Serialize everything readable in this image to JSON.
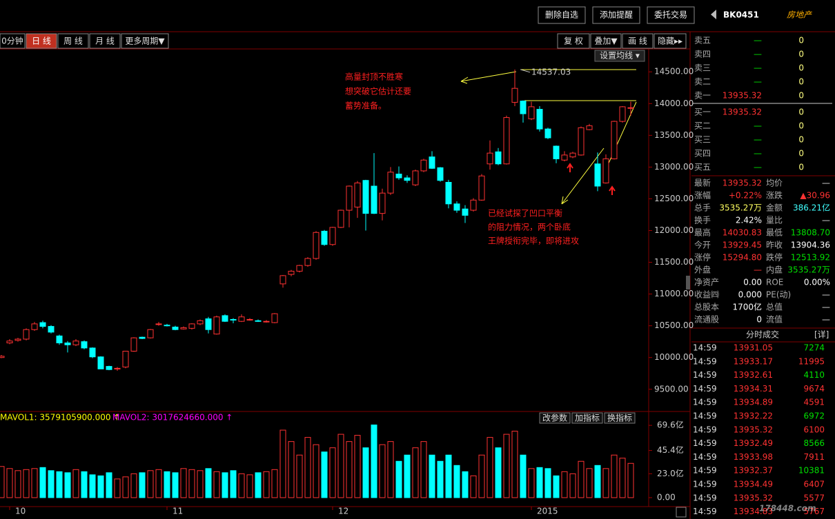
{
  "toolbar": {
    "buttons": [
      "删除自选",
      "添加提醒",
      "委托交易"
    ],
    "code": "BK0451",
    "name": "房地产"
  },
  "period_tabs": {
    "items": [
      "0分钟",
      "日 线",
      "周 线",
      "月 线",
      "更多周期▼"
    ],
    "active": 1
  },
  "chart_tools": {
    "items": [
      "复 权",
      "叠加▼",
      "画 线",
      "隐藏▸▸"
    ],
    "ma_setting": "设置均线 ▾"
  },
  "chart_data": [
    {
      "type": "candlestick",
      "up_color": "#ff3232",
      "down_color": "#00ffff",
      "categories": [
        null,
        "10",
        null,
        null,
        null,
        null,
        null,
        null,
        null,
        null,
        null,
        null,
        null,
        null,
        null,
        null,
        null,
        null,
        null,
        null,
        "11",
        null,
        null,
        null,
        null,
        null,
        null,
        null,
        null,
        null,
        null,
        null,
        null,
        null,
        null,
        null,
        null,
        null,
        null,
        null,
        "12",
        null,
        null,
        null,
        null,
        null,
        null,
        null,
        null,
        null,
        null,
        null,
        null,
        null,
        null,
        null,
        null,
        null,
        null,
        null,
        null,
        null,
        null,
        null,
        "2015",
        null,
        null,
        null,
        null,
        null,
        null,
        null,
        null,
        null,
        null,
        null,
        null
      ],
      "ohlc": [
        [
          10000,
          10040,
          9990,
          10020
        ],
        [
          10230,
          10290,
          10210,
          10260
        ],
        [
          10270,
          10310,
          10250,
          10290
        ],
        [
          10290,
          10460,
          10270,
          10440
        ],
        [
          10440,
          10560,
          10420,
          10530
        ],
        [
          10550,
          10580,
          10460,
          10490
        ],
        [
          10490,
          10510,
          10380,
          10400
        ],
        [
          10340,
          10360,
          10200,
          10230
        ],
        [
          10230,
          10260,
          10080,
          10200
        ],
        [
          10200,
          10290,
          10180,
          10260
        ],
        [
          10250,
          10270,
          10130,
          10150
        ],
        [
          10150,
          10160,
          9990,
          10010
        ],
        [
          10010,
          10020,
          9820,
          9820
        ],
        [
          9860,
          9870,
          9800,
          9810
        ],
        [
          9820,
          9850,
          9790,
          9830
        ],
        [
          9850,
          10100,
          9830,
          10100
        ],
        [
          10100,
          10320,
          10090,
          10310
        ],
        [
          10320,
          10330,
          10290,
          10300
        ],
        [
          10310,
          10450,
          10300,
          10440
        ],
        [
          10520,
          10560,
          10500,
          10530
        ],
        [
          10510,
          10530,
          10490,
          10500
        ],
        [
          10480,
          10500,
          10430,
          10440
        ],
        [
          10450,
          10490,
          10440,
          10470
        ],
        [
          10460,
          10540,
          10440,
          10530
        ],
        [
          10530,
          10600,
          10510,
          10580
        ],
        [
          10610,
          10640,
          10380,
          10440
        ],
        [
          10370,
          10660,
          10360,
          10640
        ],
        [
          10660,
          10680,
          10560,
          10570
        ],
        [
          10600,
          10620,
          10540,
          10590
        ],
        [
          10570,
          10680,
          10560,
          10640
        ],
        [
          10590,
          10620,
          10580,
          10600
        ],
        [
          10580,
          10600,
          10560,
          10570
        ],
        [
          10560,
          10590,
          10550,
          10570
        ],
        [
          10550,
          10700,
          10540,
          10690
        ],
        [
          11160,
          11300,
          11100,
          11290
        ],
        [
          11310,
          11380,
          11280,
          11360
        ],
        [
          11360,
          11460,
          11340,
          11450
        ],
        [
          11450,
          11580,
          11430,
          11560
        ],
        [
          11560,
          11990,
          11540,
          11970
        ],
        [
          11990,
          12010,
          11760,
          11780
        ],
        [
          11780,
          12060,
          11760,
          12050
        ],
        [
          12050,
          12330,
          12040,
          12320
        ],
        [
          12320,
          12710,
          12050,
          12700
        ],
        [
          12370,
          12780,
          12200,
          12750
        ],
        [
          12790,
          12800,
          12000,
          12270
        ],
        [
          12700,
          13220,
          12260,
          12270
        ],
        [
          12270,
          12660,
          12160,
          12590
        ],
        [
          12590,
          13000,
          12560,
          12920
        ],
        [
          12890,
          13010,
          12800,
          12830
        ],
        [
          12830,
          12870,
          12750,
          12790
        ],
        [
          12720,
          12960,
          12700,
          12940
        ],
        [
          12940,
          13130,
          12920,
          13110
        ],
        [
          13160,
          13250,
          12970,
          12980
        ],
        [
          12990,
          13000,
          12770,
          12790
        ],
        [
          12760,
          12800,
          12350,
          12420
        ],
        [
          12420,
          12460,
          12280,
          12320
        ],
        [
          12340,
          12400,
          12120,
          12240
        ],
        [
          12320,
          12510,
          12300,
          12480
        ],
        [
          12480,
          12890,
          12470,
          12860
        ],
        [
          13050,
          13420,
          12960,
          13220
        ],
        [
          13240,
          13300,
          13030,
          13050
        ],
        [
          13050,
          13810,
          13040,
          13780
        ],
        [
          14020,
          14537.03,
          13960,
          14240
        ],
        [
          14040,
          14050,
          13700,
          13840
        ],
        [
          13760,
          14030,
          13740,
          13950
        ],
        [
          13910,
          13960,
          13560,
          13600
        ],
        [
          13600,
          13620,
          13440,
          13460
        ],
        [
          13330,
          13340,
          13060,
          13130
        ],
        [
          13110,
          13250,
          13090,
          13190
        ],
        [
          13160,
          13240,
          13140,
          13220
        ],
        [
          13190,
          13640,
          13180,
          13620
        ],
        [
          13590,
          13680,
          13580,
          13650
        ],
        [
          13050,
          13230,
          12620,
          12700
        ],
        [
          12750,
          13200,
          12740,
          13130
        ],
        [
          13130,
          13730,
          13120,
          13720
        ],
        [
          13720,
          13960,
          13700,
          13950
        ],
        [
          13929.45,
          14030.83,
          13808.7,
          13935.32
        ]
      ],
      "ylim": [
        9150,
        14850
      ],
      "yticks": [
        {
          "value": 9500,
          "label": "9500.00"
        },
        {
          "value": 10000,
          "label": "10000.00"
        },
        {
          "value": 10500,
          "label": "10500.00"
        },
        {
          "value": 11000,
          "label": "11000.00"
        },
        {
          "value": 11500,
          "label": "11500.00"
        },
        {
          "value": 12000,
          "label": "12000.00"
        },
        {
          "value": 12500,
          "label": "12500.00"
        },
        {
          "value": 13000,
          "label": "13000.00"
        },
        {
          "value": 13500,
          "label": "13500.00"
        },
        {
          "value": 14000,
          "label": "14000.00"
        },
        {
          "value": 14500,
          "label": "14500.00"
        }
      ],
      "peak_label": 14537.03,
      "annotations": [
        "高量封顶不胜寒",
        "想突破它估计还要",
        "蓄势准备。",
        "已经试探了凹口平衡",
        "的阻力情况，两个卧底",
        "王牌授衔完毕，即将进攻"
      ]
    },
    {
      "type": "bar",
      "legend": [
        "MAVOL1: 3579105900.000 ↑",
        "MAVOL2: 3017624660.000 ↑"
      ],
      "legend_colors": [
        "#ffff00",
        "#ff00ff"
      ],
      "buttons": [
        "改参数",
        "加指标",
        "换指标"
      ],
      "values": [
        30,
        28,
        26,
        27,
        28,
        29,
        26,
        25,
        24,
        27,
        25,
        22,
        21,
        24,
        18,
        20,
        23,
        24,
        26,
        27,
        25,
        24,
        28,
        27,
        26,
        28,
        25,
        24,
        26,
        23,
        22,
        24,
        25,
        27,
        65,
        54,
        41,
        58,
        51,
        44,
        48,
        61,
        54,
        60,
        48,
        70,
        51,
        54,
        35,
        41,
        48,
        54,
        41,
        35,
        41,
        31,
        25,
        21,
        41,
        58,
        48,
        61,
        64,
        41,
        28,
        29,
        28,
        21,
        25,
        23,
        35,
        28,
        31,
        28,
        41,
        38,
        33
      ],
      "ylim": [
        0,
        73
      ],
      "yticks": [
        {
          "value": 0,
          "label": "0.00"
        },
        {
          "value": 23.0,
          "label": "23.0亿"
        },
        {
          "value": 45.4,
          "label": "45.4亿"
        },
        {
          "value": 69.6,
          "label": "69.6亿"
        }
      ]
    }
  ],
  "order_book": {
    "asks": [
      [
        "卖五",
        "—",
        0
      ],
      [
        "卖四",
        "—",
        0
      ],
      [
        "卖三",
        "—",
        0
      ],
      [
        "卖二",
        "—",
        0
      ],
      [
        "卖一",
        13935.32,
        0
      ]
    ],
    "bids": [
      [
        "买一",
        13935.32,
        0
      ],
      [
        "买二",
        "—",
        0
      ],
      [
        "买三",
        "—",
        0
      ],
      [
        "买四",
        "—",
        0
      ],
      [
        "买五",
        "—",
        0
      ]
    ]
  },
  "quote": [
    {
      "l1": "最新",
      "v1": "13935.32",
      "c1": "#ff3232",
      "l2": "均价",
      "v2": "—",
      "c2": "#dddddd"
    },
    {
      "l1": "涨幅",
      "v1": "+0.22%",
      "c1": "#ff3232",
      "l2": "涨跌",
      "v2": "▲30.96",
      "c2": "#ff3232"
    },
    {
      "l1": "总手",
      "v1": "3535.27万",
      "c1": "#ffff60",
      "l2": "金额",
      "v2": "386.21亿",
      "c2": "#40ffff"
    },
    {
      "l1": "换手",
      "v1": "2.42%",
      "c1": "#ffffff",
      "l2": "量比",
      "v2": "—",
      "c2": "#dddddd"
    },
    {
      "l1": "最高",
      "v1": "14030.83",
      "c1": "#ff3232",
      "l2": "最低",
      "v2": "13808.70",
      "c2": "#00e000"
    },
    {
      "l1": "今开",
      "v1": "13929.45",
      "c1": "#ff3232",
      "l2": "昨收",
      "v2": "13904.36",
      "c2": "#ffffff"
    },
    {
      "l1": "涨停",
      "v1": "15294.80",
      "c1": "#ff3232",
      "l2": "跌停",
      "v2": "12513.92",
      "c2": "#00e000"
    },
    {
      "l1": "外盘",
      "v1": "—",
      "c1": "#ff3232",
      "l2": "内盘",
      "v2": "3535.27万",
      "c2": "#00e000"
    },
    {
      "l1": "净资产",
      "v1": "0.00",
      "c1": "#ffffff",
      "l2": "ROE",
      "v2": "0.00%",
      "c2": "#ffffff"
    },
    {
      "l1": "收益㈣",
      "v1": "0.000",
      "c1": "#ffffff",
      "l2": "PE(动)",
      "v2": "—",
      "c2": "#dddddd"
    },
    {
      "l1": "总股本",
      "v1": "1700亿",
      "c1": "#ffffff",
      "l2": "总值",
      "v2": "—",
      "c2": "#dddddd"
    },
    {
      "l1": "流通股",
      "v1": "0",
      "c1": "#ffffff",
      "l2": "流值",
      "v2": "—",
      "c2": "#dddddd"
    }
  ],
  "trades": {
    "title": "分时成交",
    "detail": "[详]",
    "rows": [
      [
        "14:59",
        13931.05,
        7274,
        "#00e000"
      ],
      [
        "14:59",
        13933.17,
        11995,
        "#ff3232"
      ],
      [
        "14:59",
        13932.61,
        4110,
        "#00e000"
      ],
      [
        "14:59",
        13934.31,
        9674,
        "#ff3232"
      ],
      [
        "14:59",
        13934.89,
        4591,
        "#ff3232"
      ],
      [
        "14:59",
        13932.22,
        6972,
        "#00e000"
      ],
      [
        "14:59",
        13935.32,
        6100,
        "#ff3232"
      ],
      [
        "14:59",
        13932.49,
        8566,
        "#00e000"
      ],
      [
        "14:59",
        13933.98,
        7911,
        "#ff3232"
      ],
      [
        "14:59",
        13932.37,
        10381,
        "#00e000"
      ],
      [
        "14:59",
        13934.49,
        6407,
        "#ff3232"
      ],
      [
        "14:59",
        13935.32,
        5577,
        "#ff3232"
      ],
      [
        "14:59",
        13934.83,
        5767,
        "#ff3232"
      ]
    ]
  },
  "watermark": "178448.com"
}
